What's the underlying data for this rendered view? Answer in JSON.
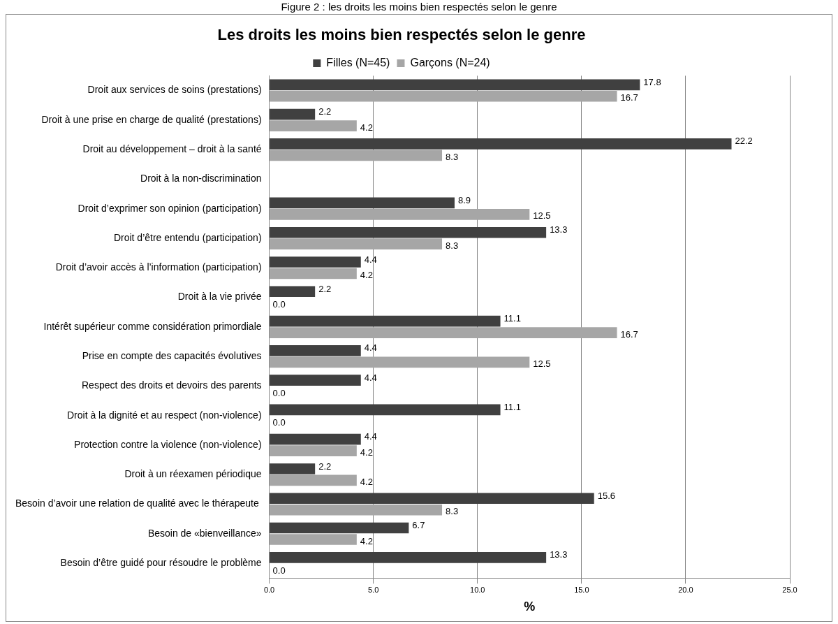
{
  "chart_data": {
    "type": "bar",
    "orientation": "horizontal",
    "title": "Les droits les moins bien respectés selon le genre",
    "xlabel": "%",
    "annotations": [
      "Figure 2 : les droits les moins bien respectés selon le genre"
    ],
    "categories": [
      "Droit aux services de soins (prestations)",
      "Droit à une prise en charge de qualité (prestations)",
      "Droit au développement – droit à la santé",
      "Droit à la non-discrimination",
      "Droit d’exprimer son opinion (participation)",
      "Droit d’être entendu (participation)",
      "Droit d’avoir accès à l’information (participation)",
      "Droit à la vie privée",
      "Intérêt supérieur comme considération primordiale",
      "Prise en compte des capacités évolutives",
      "Respect des droits et devoirs des parents",
      "Droit à la dignité et au respect (non-violence)",
      "Protection contre la violence (non-violence)",
      "Droit à un réexamen périodique",
      "Besoin d’avoir une relation de qualité avec le thérapeute ",
      "Besoin de «bienveillance»",
      "Besoin d’être guidé pour résoudre le problème"
    ],
    "series": [
      {
        "name": "Filles (N=45)",
        "color": "#404040",
        "values": [
          17.8,
          2.2,
          22.2,
          null,
          8.9,
          13.3,
          4.4,
          2.2,
          11.1,
          4.4,
          4.4,
          11.1,
          4.4,
          2.2,
          15.6,
          6.7,
          13.3
        ],
        "value_labels": [
          "17.8",
          "2.2",
          "22.2",
          null,
          "8.9",
          "13.3",
          "4.4",
          "2.2",
          "11.1",
          "4.4",
          "4.4",
          "11.1",
          "4.4",
          "2.2",
          "15.6",
          "6.7",
          "13.3"
        ]
      },
      {
        "name": "Garçons (N=24)",
        "color": "#a6a6a6",
        "values": [
          16.7,
          4.2,
          8.3,
          null,
          12.5,
          8.3,
          4.2,
          0,
          16.7,
          12.5,
          0,
          0,
          4.2,
          4.2,
          8.3,
          4.2,
          0
        ],
        "value_labels": [
          "16.7",
          "4.2",
          "8.3",
          null,
          "12.5",
          "8.3",
          "4.2",
          "0.0",
          "16.7",
          "12.5",
          "0.0",
          "0.0",
          "4.2",
          "4.2",
          "8.3",
          "4.2",
          "0.0"
        ]
      }
    ],
    "xlim": [
      0,
      25
    ],
    "xticks": [
      {
        "value": 0,
        "label": "0.0"
      },
      {
        "value": 5,
        "label": "5.0"
      },
      {
        "value": 10,
        "label": "10.0"
      },
      {
        "value": 15,
        "label": "15.0"
      },
      {
        "value": 20,
        "label": "20.0"
      },
      {
        "value": 25,
        "label": "25.0"
      }
    ],
    "grid": "x",
    "legend": "top"
  }
}
